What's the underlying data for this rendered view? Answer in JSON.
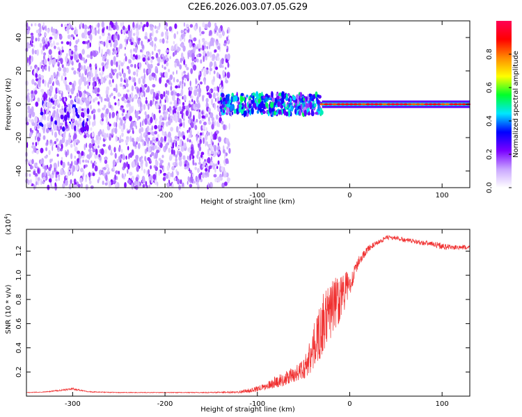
{
  "title": "C2E6.2026.003.07.05.G29",
  "chart_data": [
    {
      "type": "heatmap",
      "xlabel": "Height of straight line (km)",
      "ylabel": "Frequency (Hz)",
      "xlim": [
        -350,
        130
      ],
      "ylim": [
        -50,
        50
      ],
      "xticks": [
        -300,
        -200,
        -100,
        0,
        100
      ],
      "yticks": [
        -40,
        -20,
        0,
        20,
        40
      ],
      "colorbar": {
        "label": "Normalized spectral amplitude",
        "range": [
          0,
          1
        ],
        "ticks": [
          0.0,
          0.2,
          0.4,
          0.6,
          0.8
        ],
        "colors": [
          "#ffffff",
          "#c9a6ff",
          "#7a00ff",
          "#0000ff",
          "#00e6ff",
          "#00ff2a",
          "#ffff00",
          "#ff8c00",
          "#ff0000",
          "#ff0055"
        ]
      },
      "regions": [
        {
          "x_range": [
            -350,
            -130
          ],
          "y_range": [
            -50,
            48
          ],
          "amplitude": 0.1,
          "pattern": "noise"
        },
        {
          "x_range": [
            -335,
            -280
          ],
          "y_range": [
            -15,
            5
          ],
          "amplitude": 0.2,
          "pattern": "noise"
        },
        {
          "x_range": [
            -140,
            -30
          ],
          "y_range": [
            -6,
            6
          ],
          "amplitude": 0.45,
          "pattern": "band"
        },
        {
          "x_range": [
            -30,
            130
          ],
          "y_range": [
            -1,
            1
          ],
          "amplitude": 0.95,
          "pattern": "line"
        }
      ]
    },
    {
      "type": "line",
      "xlabel": "Height of straight line (km)",
      "ylabel": "SNR (10 * v/v)",
      "yscale_label": "(x10",
      "yscale_exp": "4",
      "xlim": [
        -350,
        130
      ],
      "ylim": [
        0,
        1.38
      ],
      "xticks": [
        -300,
        -200,
        -100,
        0,
        100
      ],
      "yticks": [
        0.2,
        0.4,
        0.6,
        0.8,
        1.0,
        1.2
      ],
      "series": [
        {
          "name": "SNR",
          "color": "#f03030",
          "x": [
            -350,
            -330,
            -300,
            -280,
            -250,
            -200,
            -150,
            -120,
            -105,
            -90,
            -80,
            -70,
            -60,
            -50,
            -45,
            -40,
            -35,
            -30,
            -25,
            -20,
            -15,
            -10,
            -5,
            0,
            5,
            10,
            20,
            30,
            40,
            50,
            60,
            70,
            80,
            90,
            100,
            110,
            120,
            130
          ],
          "y": [
            0.03,
            0.035,
            0.06,
            0.035,
            0.03,
            0.03,
            0.03,
            0.035,
            0.05,
            0.08,
            0.12,
            0.14,
            0.18,
            0.22,
            0.3,
            0.38,
            0.48,
            0.58,
            0.65,
            0.72,
            0.78,
            0.82,
            0.88,
            0.92,
            1.02,
            1.12,
            1.22,
            1.27,
            1.31,
            1.31,
            1.29,
            1.28,
            1.27,
            1.26,
            1.24,
            1.23,
            1.23,
            1.23
          ],
          "noise": [
            0.003,
            0.003,
            0.01,
            0.004,
            0.003,
            0.003,
            0.004,
            0.01,
            0.02,
            0.03,
            0.05,
            0.06,
            0.07,
            0.09,
            0.13,
            0.18,
            0.22,
            0.25,
            0.25,
            0.24,
            0.22,
            0.2,
            0.16,
            0.1,
            0.06,
            0.04,
            0.025,
            0.02,
            0.02,
            0.02,
            0.02,
            0.02,
            0.02,
            0.02,
            0.03,
            0.02,
            0.02,
            0.02
          ]
        }
      ]
    }
  ]
}
